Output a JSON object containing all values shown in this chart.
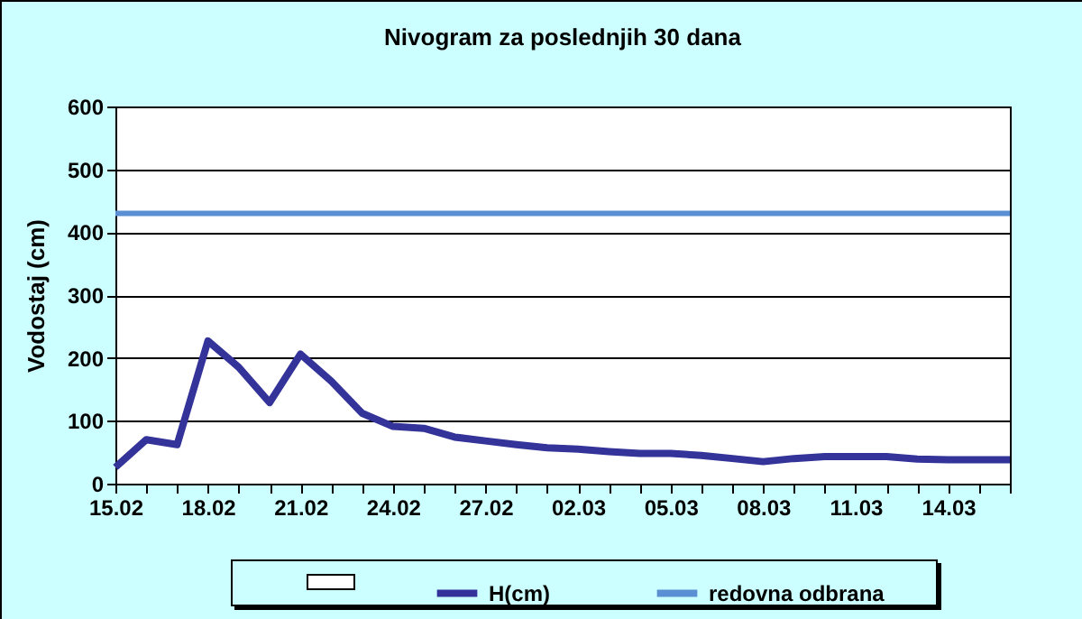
{
  "chart_data": {
    "type": "line",
    "title": "Nivogram za poslednjih 30 dana",
    "ylabel": "Vodostaj (cm)",
    "x": [
      "--02-15",
      "--02-16",
      "--02-17",
      "--02-18",
      "--02-19",
      "--02-20",
      "--02-21",
      "--02-22",
      "--02-23",
      "--02-24",
      "--02-25",
      "--02-26",
      "--02-27",
      "--02-28",
      "--03-01",
      "--03-02",
      "--03-03",
      "--03-04",
      "--03-05",
      "--03-06",
      "--03-07",
      "--03-08",
      "--03-09",
      "--03-10",
      "--03-11",
      "--03-12",
      "--03-13",
      "--03-14",
      "--03-15",
      "--03-16"
    ],
    "series": [
      {
        "name": "H(cm)",
        "color": "#333399",
        "values": [
          26,
          70,
          62,
          227,
          185,
          129,
          206,
          163,
          112,
          91,
          88,
          74,
          68,
          62,
          57,
          55,
          51,
          48,
          48,
          45,
          40,
          35,
          40,
          43,
          43,
          43,
          39,
          38,
          38,
          38
        ]
      },
      {
        "name": "redovna odbrana",
        "color": "#5b8fd4",
        "values": [
          430,
          430,
          430,
          430,
          430,
          430,
          430,
          430,
          430,
          430,
          430,
          430,
          430,
          430,
          430,
          430,
          430,
          430,
          430,
          430,
          430,
          430,
          430,
          430,
          430,
          430,
          430,
          430,
          430,
          430
        ]
      }
    ],
    "xlim": [
      "--02-15",
      "--03-16"
    ],
    "xticks": [
      {
        "value": "--02-15",
        "label": "15.02"
      },
      {
        "value": "--02-16",
        "label": null
      },
      {
        "value": "--02-17",
        "label": null
      },
      {
        "value": "--02-18",
        "label": "18.02"
      },
      {
        "value": "--02-19",
        "label": null
      },
      {
        "value": "--02-20",
        "label": null
      },
      {
        "value": "--02-21",
        "label": "21.02"
      },
      {
        "value": "--02-22",
        "label": null
      },
      {
        "value": "--02-23",
        "label": null
      },
      {
        "value": "--02-24",
        "label": "24.02"
      },
      {
        "value": "--02-25",
        "label": null
      },
      {
        "value": "--02-26",
        "label": null
      },
      {
        "value": "--02-27",
        "label": "27.02"
      },
      {
        "value": "--02-28",
        "label": null
      },
      {
        "value": "--03-01",
        "label": null
      },
      {
        "value": "--03-02",
        "label": "02.03"
      },
      {
        "value": "--03-03",
        "label": null
      },
      {
        "value": "--03-04",
        "label": null
      },
      {
        "value": "--03-05",
        "label": "05.03"
      },
      {
        "value": "--03-06",
        "label": null
      },
      {
        "value": "--03-07",
        "label": null
      },
      {
        "value": "--03-08",
        "label": "08.03"
      },
      {
        "value": "--03-09",
        "label": null
      },
      {
        "value": "--03-10",
        "label": null
      },
      {
        "value": "--03-11",
        "label": "11.03"
      },
      {
        "value": "--03-12",
        "label": null
      },
      {
        "value": "--03-13",
        "label": null
      },
      {
        "value": "--03-14",
        "label": "14.03"
      },
      {
        "value": "--03-15",
        "label": null
      },
      {
        "value": "--03-16",
        "label": null
      }
    ],
    "ylim": [
      0,
      600
    ],
    "yticks": [
      0,
      100,
      200,
      300,
      400,
      500,
      600
    ],
    "grid": "y",
    "legend": "bottom",
    "marker": "none",
    "line_style": "solid"
  }
}
